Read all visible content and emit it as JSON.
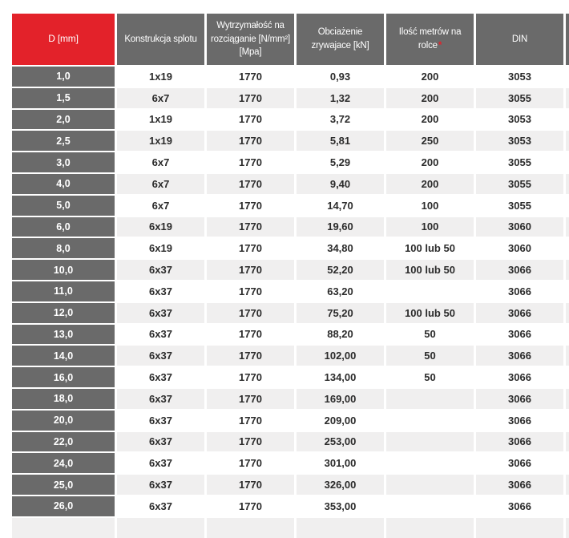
{
  "table": {
    "headers": [
      {
        "label": "D [mm]"
      },
      {
        "label": "Konstrukcja splotu"
      },
      {
        "label": "Wytrzymałość na rozciąganie [N/mm²] [Mpa]"
      },
      {
        "label": "Obciażenie zrywajace [kN]"
      },
      {
        "label": "Ilość metrów na rolce",
        "suffix": "*"
      },
      {
        "label": "DIN"
      }
    ],
    "rows": [
      [
        "1,0",
        "1x19",
        "1770",
        "0,93",
        "200",
        "3053"
      ],
      [
        "1,5",
        "6x7",
        "1770",
        "1,32",
        "200",
        "3055"
      ],
      [
        "2,0",
        "1x19",
        "1770",
        "3,72",
        "200",
        "3053"
      ],
      [
        "2,5",
        "1x19",
        "1770",
        "5,81",
        "250",
        "3053"
      ],
      [
        "3,0",
        "6x7",
        "1770",
        "5,29",
        "200",
        "3055"
      ],
      [
        "4,0",
        "6x7",
        "1770",
        "9,40",
        "200",
        "3055"
      ],
      [
        "5,0",
        "6x7",
        "1770",
        "14,70",
        "100",
        "3055"
      ],
      [
        "6,0",
        "6x19",
        "1770",
        "19,60",
        "100",
        "3060"
      ],
      [
        "8,0",
        "6x19",
        "1770",
        "34,80",
        "100 lub 50",
        "3060"
      ],
      [
        "10,0",
        "6x37",
        "1770",
        "52,20",
        "100 lub 50",
        "3066"
      ],
      [
        "11,0",
        "6x37",
        "1770",
        "63,20",
        "",
        "3066"
      ],
      [
        "12,0",
        "6x37",
        "1770",
        "75,20",
        "100 lub 50",
        "3066"
      ],
      [
        "13,0",
        "6x37",
        "1770",
        "88,20",
        "50",
        "3066"
      ],
      [
        "14,0",
        "6x37",
        "1770",
        "102,00",
        "50",
        "3066"
      ],
      [
        "16,0",
        "6x37",
        "1770",
        "134,00",
        "50",
        "3066"
      ],
      [
        "18,0",
        "6x37",
        "1770",
        "169,00",
        "",
        "3066"
      ],
      [
        "20,0",
        "6x37",
        "1770",
        "209,00",
        "",
        "3066"
      ],
      [
        "22,0",
        "6x37",
        "1770",
        "253,00",
        "",
        "3066"
      ],
      [
        "24,0",
        "6x37",
        "1770",
        "301,00",
        "",
        "3066"
      ],
      [
        "25,0",
        "6x37",
        "1770",
        "326,00",
        "",
        "3066"
      ],
      [
        "26,0",
        "6x37",
        "1770",
        "353,00",
        "",
        "3066"
      ]
    ],
    "colors": {
      "header_accent": "#e3222a",
      "header_gray": "#6a6a6a",
      "row_stripe": "#f0efef",
      "asterisk_red": "#e3222a"
    }
  }
}
